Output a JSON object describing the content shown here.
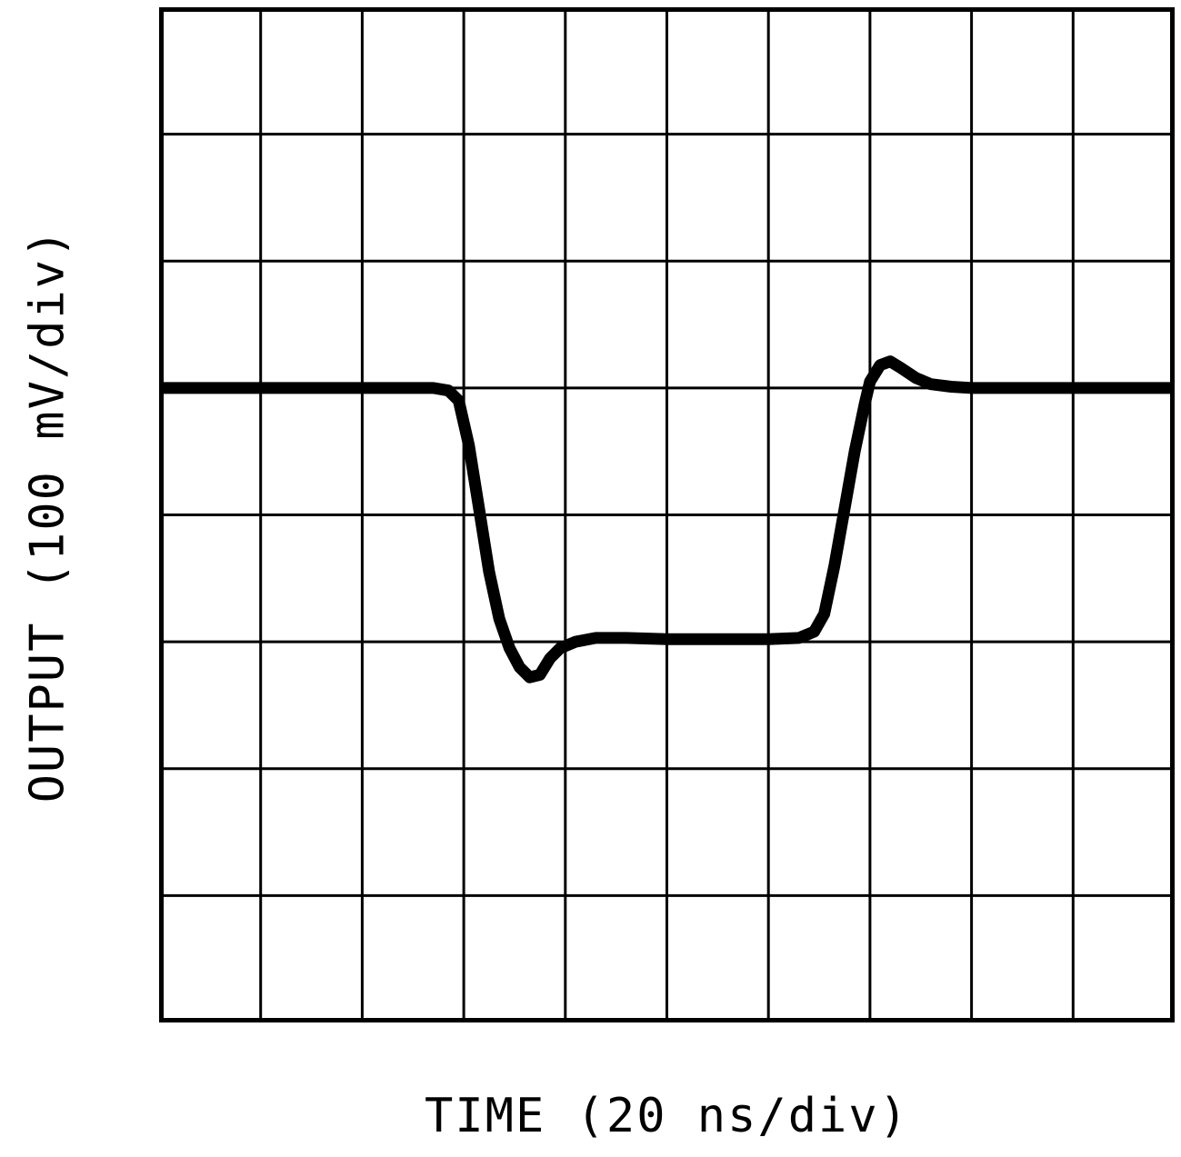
{
  "figure": {
    "kind": "oscilloscope-trace",
    "background": "#ffffff"
  },
  "colors": {
    "grid": "#000000",
    "trace": "#000000",
    "text": "#000000"
  },
  "chart_data": {
    "type": "line",
    "title": "",
    "xlabel": "TIME (20 ns/div)",
    "ylabel": "OUTPUT (100 mV/div)",
    "x_unit": "ns",
    "y_unit": "mV",
    "x_divisions": 10,
    "y_divisions": 8,
    "x_ns_per_div": 20,
    "y_mV_per_div": 100,
    "x_range_ns": [
      0,
      200
    ],
    "baseline_div_from_top": 3,
    "low_level_mV": -200,
    "undershoot_peak_mV": -228,
    "overshoot_peak_mV": 21,
    "grid": true,
    "legend": "none",
    "series": [
      {
        "name": "output",
        "points_ns_mV": [
          [
            0,
            0
          ],
          [
            20,
            0
          ],
          [
            40,
            0
          ],
          [
            50,
            0
          ],
          [
            54,
            0
          ],
          [
            57,
            -2
          ],
          [
            59,
            -10
          ],
          [
            61,
            -45
          ],
          [
            63,
            -95
          ],
          [
            65,
            -145
          ],
          [
            67,
            -182
          ],
          [
            69,
            -205
          ],
          [
            71,
            -220
          ],
          [
            73,
            -228
          ],
          [
            75,
            -226
          ],
          [
            77,
            -213
          ],
          [
            79,
            -205
          ],
          [
            82,
            -200
          ],
          [
            86,
            -197
          ],
          [
            92,
            -197
          ],
          [
            100,
            -198
          ],
          [
            110,
            -198
          ],
          [
            120,
            -198
          ],
          [
            126,
            -197
          ],
          [
            129,
            -192
          ],
          [
            131,
            -178
          ],
          [
            133,
            -140
          ],
          [
            135,
            -95
          ],
          [
            137,
            -50
          ],
          [
            139,
            -12
          ],
          [
            140,
            5
          ],
          [
            142,
            18
          ],
          [
            144,
            21
          ],
          [
            146,
            16
          ],
          [
            149,
            8
          ],
          [
            152,
            3
          ],
          [
            156,
            1
          ],
          [
            160,
            0
          ],
          [
            170,
            0
          ],
          [
            185,
            0
          ],
          [
            200,
            0
          ]
        ]
      }
    ]
  }
}
